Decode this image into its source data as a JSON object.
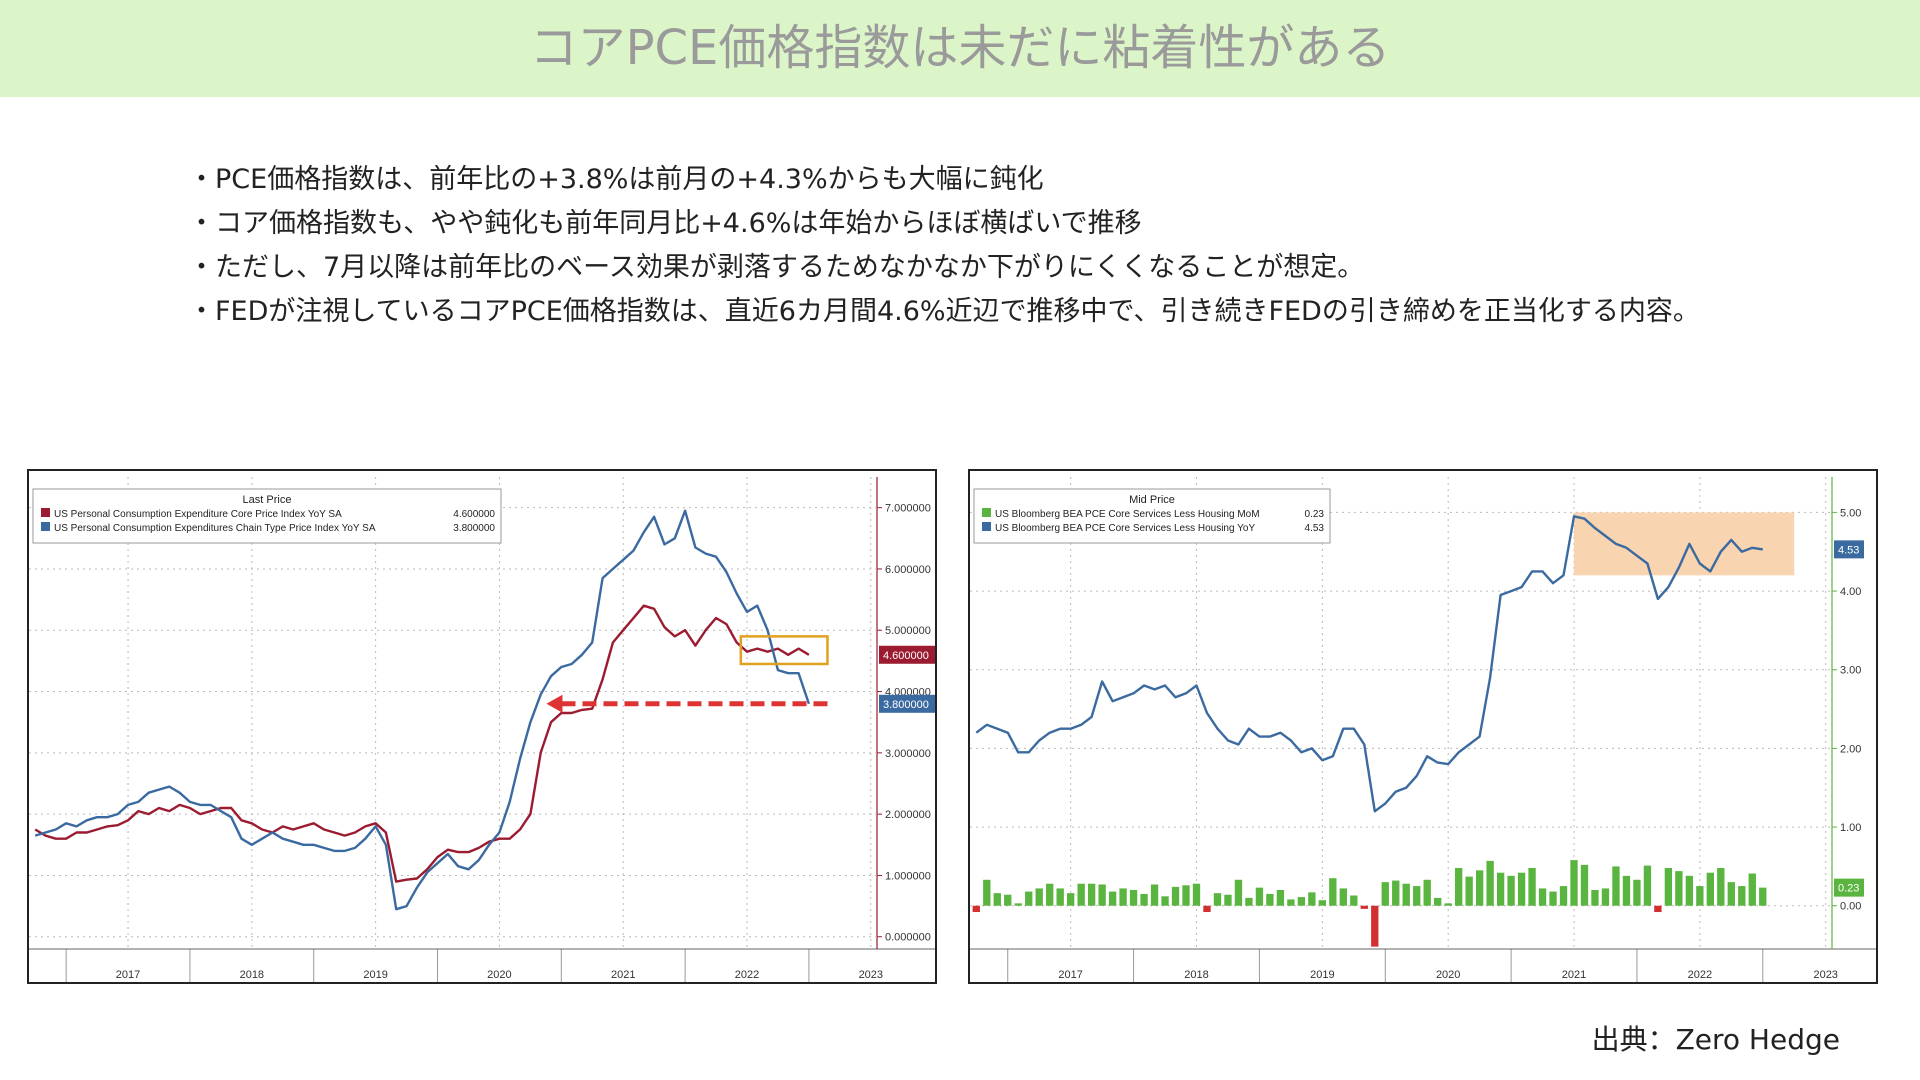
{
  "title": "コアPCE価格指数は未だに粘着性がある",
  "bullets": [
    "・PCE価格指数は、前年比の+3.8%は前月の+4.3%からも大幅に鈍化",
    "・コア価格指数も、やや鈍化も前年同月比+4.6%は年始からほぼ横ばいで推移",
    "・ただし、7月以降は前年比のベース効果が剥落するためなかなか下がりにくくなることが想定。",
    "・FEDが注視しているコアPCE価格指数は、直近6カ月間4.6%近辺で推移中で、引き続きFEDの引き締めを正当化する内容。"
  ],
  "source": "出典：Zero Hedge",
  "chart_data": [
    {
      "type": "line",
      "legend_title": "Last Price",
      "legend_position": "top-left",
      "x_ticks": [
        "2017",
        "2018",
        "2019",
        "2020",
        "2021",
        "2022",
        "2023"
      ],
      "y_ticks": [
        "0.000000",
        "1.000000",
        "2.000000",
        "3.000000",
        "4.000000",
        "5.000000",
        "6.000000",
        "7.000000"
      ],
      "ylim": [
        -0.2,
        7.5
      ],
      "xlim": [
        2016.7,
        2023.55
      ],
      "grid": true,
      "annotation": "core highlighted box and red dashed arrow",
      "series": [
        {
          "name": "US Personal Consumption Expenditure Core Price Index YoY SA",
          "last_label": "4.600000",
          "color": "#9b1b30",
          "t0": 2016.75,
          "dt": 0.08333,
          "values": [
            1.75,
            1.65,
            1.6,
            1.6,
            1.7,
            1.7,
            1.75,
            1.8,
            1.82,
            1.9,
            2.05,
            2.0,
            2.1,
            2.05,
            2.15,
            2.1,
            2.0,
            2.05,
            2.1,
            2.1,
            1.9,
            1.85,
            1.75,
            1.7,
            1.8,
            1.75,
            1.8,
            1.85,
            1.75,
            1.7,
            1.65,
            1.7,
            1.8,
            1.85,
            1.7,
            0.9,
            0.93,
            0.95,
            1.1,
            1.3,
            1.42,
            1.38,
            1.38,
            1.45,
            1.55,
            1.6,
            1.6,
            1.75,
            2.0,
            3.0,
            3.5,
            3.65,
            3.65,
            3.7,
            3.72,
            4.2,
            4.8,
            5.0,
            5.2,
            5.4,
            5.35,
            5.05,
            4.9,
            5.0,
            4.75,
            5.0,
            5.2,
            5.1,
            4.8,
            4.65,
            4.7,
            4.65,
            4.7,
            4.6,
            4.7,
            4.6
          ],
          "last_value": 4.6
        },
        {
          "name": "US Personal Consumption Expenditures Chain Type Price Index YoY SA",
          "last_label": "3.800000",
          "color": "#3b6aa0",
          "t0": 2016.75,
          "dt": 0.08333,
          "values": [
            1.65,
            1.7,
            1.75,
            1.85,
            1.8,
            1.9,
            1.95,
            1.95,
            2.0,
            2.15,
            2.2,
            2.35,
            2.4,
            2.45,
            2.35,
            2.2,
            2.15,
            2.15,
            2.05,
            1.95,
            1.6,
            1.5,
            1.6,
            1.7,
            1.6,
            1.55,
            1.5,
            1.5,
            1.45,
            1.4,
            1.4,
            1.45,
            1.6,
            1.8,
            1.5,
            0.45,
            0.5,
            0.8,
            1.05,
            1.2,
            1.35,
            1.15,
            1.1,
            1.25,
            1.5,
            1.7,
            2.2,
            2.9,
            3.5,
            3.95,
            4.25,
            4.4,
            4.45,
            4.6,
            4.8,
            5.85,
            6.0,
            6.15,
            6.3,
            6.6,
            6.85,
            6.4,
            6.5,
            6.95,
            6.35,
            6.25,
            6.2,
            5.95,
            5.6,
            5.3,
            5.4,
            5.0,
            4.35,
            4.3,
            4.3,
            3.8
          ],
          "last_value": 3.8
        }
      ]
    },
    {
      "type": "line+bar",
      "legend_title": "Mid Price",
      "legend_position": "top-left",
      "x_ticks": [
        "2017",
        "2018",
        "2019",
        "2020",
        "2021",
        "2022",
        "2023"
      ],
      "y_ticks": [
        "0.00",
        "1.00",
        "2.00",
        "3.00",
        "4.00",
        "5.00"
      ],
      "ylim": [
        -0.55,
        5.45
      ],
      "xlim": [
        2016.7,
        2023.55
      ],
      "grid": true,
      "series": [
        {
          "name": "US Bloomberg BEA PCE Core Services Less Housing MoM",
          "legend_value": "0.23",
          "last_label": "0.23",
          "type": "bar",
          "color_positive": "#5ab540",
          "color_negative": "#d23030",
          "t0": 2016.75,
          "dt": 0.08333,
          "values": [
            -0.08,
            0.33,
            0.16,
            0.14,
            0.03,
            0.18,
            0.22,
            0.28,
            0.22,
            0.16,
            0.28,
            0.28,
            0.27,
            0.18,
            0.22,
            0.2,
            0.15,
            0.27,
            0.12,
            0.24,
            0.26,
            0.28,
            -0.08,
            0.16,
            0.14,
            0.33,
            0.1,
            0.23,
            0.15,
            0.2,
            0.08,
            0.11,
            0.17,
            0.07,
            0.35,
            0.22,
            0.13,
            -0.04,
            -0.52,
            0.3,
            0.32,
            0.28,
            0.25,
            0.33,
            0.1,
            0.03,
            0.48,
            0.37,
            0.45,
            0.57,
            0.42,
            0.38,
            0.42,
            0.48,
            0.22,
            0.18,
            0.25,
            0.58,
            0.52,
            0.2,
            0.22,
            0.5,
            0.38,
            0.33,
            0.51,
            -0.08,
            0.48,
            0.44,
            0.38,
            0.25,
            0.42,
            0.48,
            0.3,
            0.25,
            0.41,
            0.23
          ],
          "last_value": 0.23
        },
        {
          "name": "US Bloomberg BEA PCE Core Services Less Housing YoY",
          "legend_value": "4.53",
          "last_label": "4.53",
          "type": "line",
          "color": "#3b6aa0",
          "highlight_color": "#f5c8a0",
          "t0": 2016.75,
          "dt": 0.08333,
          "values": [
            2.2,
            2.3,
            2.25,
            2.2,
            1.95,
            1.95,
            2.1,
            2.2,
            2.25,
            2.25,
            2.3,
            2.4,
            2.85,
            2.6,
            2.65,
            2.7,
            2.8,
            2.75,
            2.8,
            2.65,
            2.7,
            2.8,
            2.45,
            2.25,
            2.1,
            2.05,
            2.25,
            2.15,
            2.15,
            2.2,
            2.1,
            1.95,
            2.0,
            1.85,
            1.9,
            2.25,
            2.25,
            2.05,
            1.2,
            1.3,
            1.45,
            1.5,
            1.65,
            1.9,
            1.82,
            1.8,
            1.95,
            2.05,
            2.15,
            2.9,
            3.95,
            4.0,
            4.05,
            4.25,
            4.25,
            4.1,
            4.2,
            4.95,
            4.92,
            4.8,
            4.7,
            4.6,
            4.55,
            4.45,
            4.35,
            3.9,
            4.05,
            4.3,
            4.6,
            4.35,
            4.25,
            4.5,
            4.65,
            4.5,
            4.55,
            4.53
          ],
          "last_value": 4.53
        }
      ]
    }
  ]
}
